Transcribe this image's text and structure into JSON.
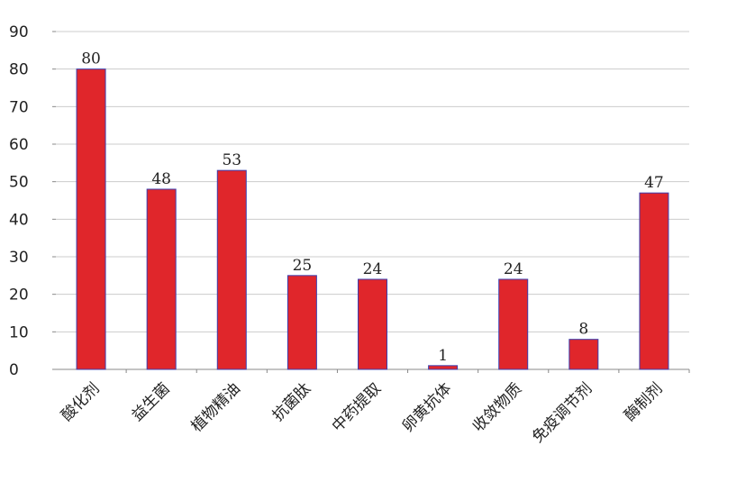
{
  "chart_data": {
    "type": "bar",
    "title": "",
    "xlabel": "",
    "ylabel": "",
    "categories": [
      "酸化剂",
      "益生菌",
      "植物精油",
      "抗菌肽",
      "中药提取",
      "卵黄抗体",
      "收敛物质",
      "免疫调节剂",
      "酶制剂"
    ],
    "values": [
      80,
      48,
      53,
      25,
      24,
      1,
      24,
      8,
      47
    ],
    "ylim": [
      0,
      90
    ],
    "yticks": [
      0,
      10,
      20,
      30,
      40,
      50,
      60,
      70,
      80,
      90
    ],
    "grid": true,
    "legend": "none",
    "data_labels": true,
    "colors": {
      "bar": "#e0262b",
      "bar_edge": "#3b3fb0",
      "grid": "#cccccc",
      "axis": "#888888"
    }
  }
}
